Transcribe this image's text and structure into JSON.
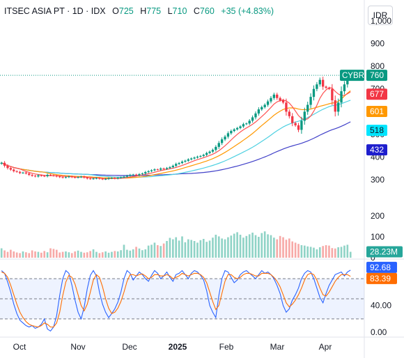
{
  "header": {
    "symbol": "ITSEC ASIA PT · 1D · IDX",
    "open_label": "O",
    "open": "725",
    "high_label": "H",
    "high": "775",
    "low_label": "L",
    "low": "710",
    "close_label": "C",
    "close": "760",
    "change": "+35 (+4.83%)"
  },
  "currency_button": "IDR",
  "colors": {
    "up": "#089981",
    "down": "#f23645",
    "ma_fast": "#ff5252",
    "ma_mid": "#ff9800",
    "ma_slow": "#4dd0e1",
    "ma_long": "#3f3fc8",
    "stoch_k": "#2962ff",
    "stoch_d": "#ff6d00"
  },
  "chart_data": [
    {
      "type": "candlestick",
      "symbol": "CYBR",
      "x_tick_labels": [
        "Oct",
        "Nov",
        "Dec",
        "2025",
        "Feb",
        "Mar",
        "Apr"
      ],
      "y_tick_labels": [
        "300",
        "400",
        "500",
        "600",
        "700",
        "800",
        "900",
        "1,000"
      ],
      "ylim": [
        270,
        1030
      ],
      "last_price_label": "CYBR",
      "last_price": "760",
      "moving_averages": [
        {
          "value": "677",
          "color": "#f23645"
        },
        {
          "value": "601",
          "color": "#ff9800"
        },
        {
          "value": "518",
          "color": "#00e5ff"
        },
        {
          "value": "432",
          "color": "#1e1ecd"
        }
      ],
      "close_series": [
        375,
        362,
        352,
        345,
        338,
        335,
        330,
        332,
        328,
        322,
        318,
        315,
        320,
        318,
        316,
        322,
        320,
        318,
        315,
        312,
        310,
        312,
        315,
        312,
        310,
        312,
        314,
        310,
        306,
        304,
        306,
        308,
        305,
        303,
        304,
        307,
        308,
        306,
        309,
        311,
        314,
        318,
        322,
        323,
        320,
        325,
        328,
        334,
        338,
        342,
        346,
        345,
        350,
        348,
        352,
        356,
        362,
        370,
        374,
        380,
        384,
        390,
        394,
        398,
        402,
        405,
        410,
        418,
        424,
        432,
        445,
        462,
        478,
        490,
        505,
        515,
        522,
        528,
        535,
        545,
        548,
        560,
        575,
        592,
        610,
        620,
        630,
        645,
        660,
        675,
        660,
        650,
        640,
        600,
        580,
        550,
        540,
        520,
        560,
        600,
        630,
        665,
        700,
        720,
        740,
        710,
        705,
        700,
        650,
        600,
        640,
        690,
        720,
        750,
        760
      ]
    },
    {
      "type": "bar",
      "name": "volume",
      "y_tick_labels": [
        "0",
        "100",
        "200"
      ],
      "ylim": [
        0,
        300
      ],
      "last_label": "28.23M",
      "values": [
        45,
        35,
        28,
        38,
        30,
        25,
        22,
        30,
        26,
        22,
        35,
        30,
        28,
        24,
        32,
        26,
        45,
        42,
        38,
        25,
        28,
        30,
        26,
        22,
        30,
        34,
        28,
        24,
        26,
        32,
        40,
        28,
        22,
        26,
        30,
        24,
        28,
        32,
        30,
        36,
        62,
        38,
        34,
        40,
        52,
        44,
        36,
        40,
        58,
        62,
        72,
        60,
        56,
        68,
        80,
        95,
        88,
        98,
        82,
        102,
        74,
        88,
        85,
        80,
        72,
        84,
        90,
        76,
        82,
        96,
        110,
        102,
        92,
        88,
        98,
        106,
        115,
        122,
        110,
        96,
        104,
        112,
        120,
        108,
        100,
        118,
        126,
        112,
        108,
        96,
        88,
        104,
        98,
        86,
        92,
        78,
        72,
        66,
        60,
        58,
        54,
        52,
        48,
        40,
        50,
        56,
        60,
        58,
        46,
        44,
        50,
        52,
        58,
        62,
        28.23
      ]
    },
    {
      "type": "line",
      "name": "stochastic",
      "y_tick_labels": [
        "0.00",
        "40.00"
      ],
      "ylim": [
        -5,
        105
      ],
      "series": [
        {
          "label": "92.68",
          "color": "#2962ff",
          "values": [
            92,
            88,
            75,
            60,
            42,
            28,
            18,
            14,
            10,
            8,
            10,
            6,
            8,
            12,
            20,
            5,
            2,
            8,
            25,
            55,
            80,
            92,
            88,
            70,
            48,
            30,
            20,
            38,
            65,
            85,
            92,
            84,
            60,
            42,
            30,
            22,
            28,
            35,
            45,
            60,
            80,
            92,
            88,
            78,
            84,
            90,
            86,
            80,
            76,
            85,
            92,
            88,
            80,
            84,
            90,
            82,
            76,
            86,
            88,
            92,
            86,
            80,
            88,
            92,
            90,
            85,
            78,
            62,
            40,
            30,
            22,
            55,
            80,
            92,
            90,
            82,
            74,
            78,
            86,
            90,
            92,
            88,
            84,
            80,
            86,
            92,
            88,
            90,
            86,
            80,
            70,
            58,
            40,
            30,
            35,
            48,
            56,
            66,
            80,
            88,
            92,
            90,
            80,
            66,
            52,
            44,
            58,
            70,
            78,
            86,
            88,
            90,
            84,
            90,
            92.68
          ]
        },
        {
          "label": "83.39",
          "color": "#ff6d00",
          "values": [
            90,
            88,
            82,
            70,
            56,
            42,
            30,
            22,
            16,
            12,
            10,
            9,
            8,
            10,
            14,
            12,
            8,
            8,
            14,
            30,
            55,
            75,
            85,
            82,
            72,
            56,
            40,
            32,
            42,
            60,
            78,
            86,
            82,
            68,
            50,
            36,
            28,
            30,
            36,
            46,
            60,
            76,
            86,
            86,
            84,
            86,
            87,
            84,
            80,
            82,
            86,
            86,
            84,
            84,
            86,
            84,
            80,
            82,
            84,
            88,
            86,
            84,
            86,
            88,
            88,
            86,
            82,
            74,
            60,
            46,
            34,
            40,
            58,
            76,
            86,
            86,
            82,
            80,
            82,
            86,
            88,
            88,
            86,
            84,
            84,
            88,
            88,
            88,
            86,
            82,
            76,
            68,
            56,
            44,
            38,
            42,
            48,
            56,
            66,
            78,
            86,
            88,
            86,
            78,
            66,
            56,
            54,
            60,
            68,
            76,
            82,
            86,
            86,
            86,
            83.39
          ]
        }
      ],
      "bands": [
        20,
        50,
        80
      ]
    }
  ]
}
